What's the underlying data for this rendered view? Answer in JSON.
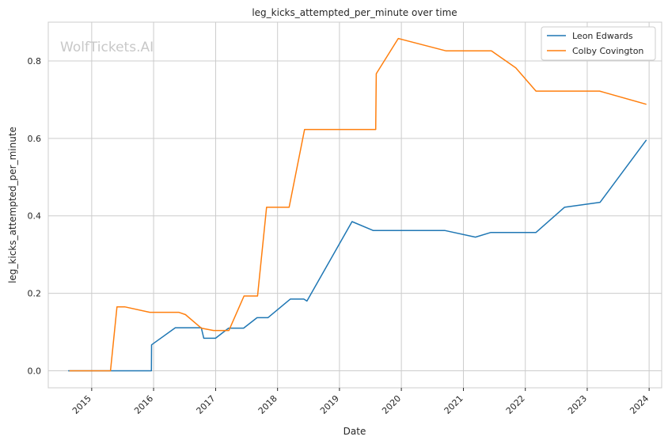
{
  "watermark": "WolfTickets.AI",
  "chart_data": {
    "type": "line",
    "title": "leg_kicks_attempted_per_minute over time",
    "xlabel": "Date",
    "ylabel": "leg_kicks_attempted_per_minute",
    "x_range": [
      "2014-04-20",
      "2024-03-15"
    ],
    "ylim": [
      -0.044,
      0.9
    ],
    "x_ticks": [
      "2015",
      "2016",
      "2017",
      "2018",
      "2019",
      "2020",
      "2021",
      "2022",
      "2023",
      "2024"
    ],
    "y_ticks": [
      "0.0",
      "0.2",
      "0.4",
      "0.6",
      "0.8"
    ],
    "grid": true,
    "legend_position": "top-right",
    "series": [
      {
        "name": "Leon Edwards",
        "color": "#1f77b4",
        "points": [
          [
            "2014-08-15",
            0.0
          ],
          [
            "2015-04-10",
            0.0
          ],
          [
            "2015-12-19",
            0.0
          ],
          [
            "2015-12-20",
            0.067
          ],
          [
            "2016-05-08",
            0.111
          ],
          [
            "2016-10-08",
            0.111
          ],
          [
            "2016-10-23",
            0.084
          ],
          [
            "2016-12-31",
            0.084
          ],
          [
            "2017-03-18",
            0.11
          ],
          [
            "2017-06-15",
            0.11
          ],
          [
            "2017-09-02",
            0.137
          ],
          [
            "2017-11-05",
            0.137
          ],
          [
            "2018-03-17",
            0.185
          ],
          [
            "2018-06-05",
            0.185
          ],
          [
            "2018-06-23",
            0.18
          ],
          [
            "2019-03-16",
            0.385
          ],
          [
            "2019-07-20",
            0.362
          ],
          [
            "2020-09-15",
            0.362
          ],
          [
            "2021-03-13",
            0.345
          ],
          [
            "2021-06-12",
            0.357
          ],
          [
            "2022-03-05",
            0.357
          ],
          [
            "2022-08-20",
            0.422
          ],
          [
            "2023-03-18",
            0.435
          ],
          [
            "2023-12-16",
            0.596
          ]
        ]
      },
      {
        "name": "Colby Covington",
        "color": "#ff7f0e",
        "points": [
          [
            "2014-08-23",
            0.0
          ],
          [
            "2015-04-22",
            0.0
          ],
          [
            "2015-05-30",
            0.165
          ],
          [
            "2015-07-15",
            0.165
          ],
          [
            "2015-12-10",
            0.151
          ],
          [
            "2016-05-28",
            0.151
          ],
          [
            "2016-07-07",
            0.145
          ],
          [
            "2016-10-08",
            0.11
          ],
          [
            "2016-12-20",
            0.104
          ],
          [
            "2017-03-20",
            0.104
          ],
          [
            "2017-06-17",
            0.193
          ],
          [
            "2017-09-05",
            0.193
          ],
          [
            "2017-10-28",
            0.422
          ],
          [
            "2018-03-10",
            0.422
          ],
          [
            "2018-06-09",
            0.623
          ],
          [
            "2019-08-03",
            0.623
          ],
          [
            "2019-08-06",
            0.767
          ],
          [
            "2019-12-14",
            0.858
          ],
          [
            "2020-09-19",
            0.826
          ],
          [
            "2021-06-15",
            0.826
          ],
          [
            "2021-11-06",
            0.782
          ],
          [
            "2022-03-05",
            0.722
          ],
          [
            "2023-03-15",
            0.722
          ],
          [
            "2023-12-16",
            0.688
          ]
        ]
      }
    ]
  }
}
